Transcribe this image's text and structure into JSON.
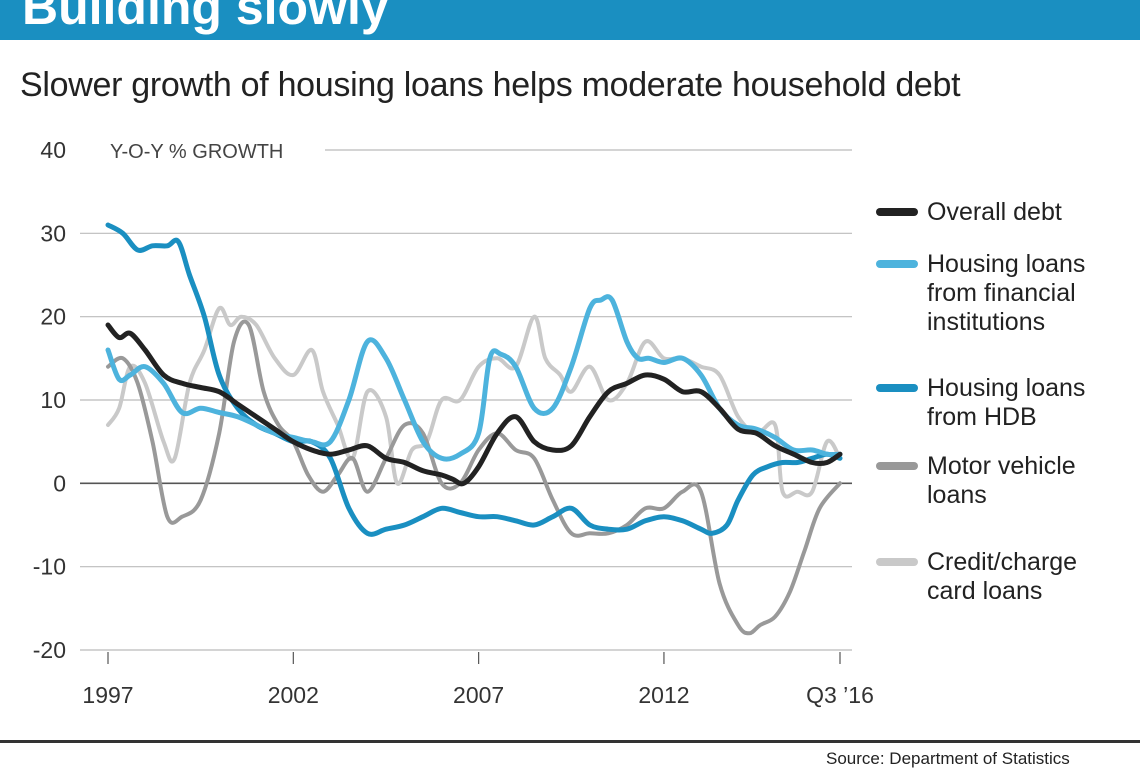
{
  "header": {
    "title": "Building slowly"
  },
  "subtitle": "Slower growth of housing loans helps moderate household debt",
  "source": "Source: Department of Statistics",
  "colors": {
    "overall": "#222222",
    "housing_fi": "#4db3dd",
    "housing_hdb": "#1a8fc1",
    "motor": "#999999",
    "credit": "#c9c9c9",
    "grid": "#bbbbbb",
    "zero": "#555555"
  },
  "chart_data": {
    "type": "line",
    "title": "Slower growth of housing loans helps moderate household debt",
    "ylabel": "Y-O-Y % GROWTH",
    "xlabel": "",
    "ylim": [
      -20,
      40
    ],
    "xlim": [
      1997,
      2016.75
    ],
    "yticks": [
      {
        "v": 40,
        "label": "40"
      },
      {
        "v": 30,
        "label": "30"
      },
      {
        "v": 20,
        "label": "20"
      },
      {
        "v": 10,
        "label": "10"
      },
      {
        "v": 0,
        "label": "0"
      },
      {
        "v": -10,
        "label": "-10"
      },
      {
        "v": -20,
        "label": "-20"
      }
    ],
    "xticks": [
      {
        "v": 1997,
        "label": "1997"
      },
      {
        "v": 2002,
        "label": "2002"
      },
      {
        "v": 2007,
        "label": "2007"
      },
      {
        "v": 2012,
        "label": "2012"
      },
      {
        "v": 2016.75,
        "label": "Q3 ’16"
      }
    ],
    "series": [
      {
        "key": "credit",
        "name": "Credit/charge card loans",
        "legend_lines": [
          "Credit/charge",
          "card loans"
        ],
        "x": [
          1997,
          1997.3,
          1997.6,
          1998,
          1998.5,
          1998.8,
          1999.2,
          1999.6,
          2000,
          2000.3,
          2000.6,
          2001,
          2001.5,
          2002,
          2002.5,
          2002.8,
          2003.2,
          2003.6,
          2004,
          2004.5,
          2004.8,
          2005.2,
          2005.6,
          2006,
          2006.5,
          2007,
          2007.5,
          2008,
          2008.5,
          2008.8,
          2009.2,
          2009.5,
          2010,
          2010.5,
          2011,
          2011.5,
          2012,
          2012.5,
          2013,
          2013.5,
          2014,
          2014.5,
          2015,
          2015.2,
          2015.6,
          2016,
          2016.4,
          2016.75
        ],
        "y": [
          7,
          9,
          14,
          12,
          5,
          3,
          12,
          16,
          21,
          19,
          20,
          19,
          15,
          13,
          16,
          11,
          7,
          3,
          11,
          8,
          0,
          4,
          5,
          10,
          10,
          14,
          15,
          14,
          20,
          15,
          13,
          11,
          14,
          10,
          12,
          17,
          15,
          15,
          14,
          13,
          8,
          6,
          7,
          -1,
          -1,
          -1,
          5,
          3
        ]
      },
      {
        "key": "motor",
        "name": "Motor vehicle loans",
        "legend_lines": [
          "Motor vehicle",
          "loans"
        ],
        "x": [
          1997,
          1997.4,
          1997.8,
          1998.2,
          1998.6,
          1999,
          1999.5,
          2000,
          2000.4,
          2000.8,
          2001.2,
          2001.6,
          2002,
          2002.4,
          2002.8,
          2003.2,
          2003.6,
          2004,
          2004.5,
          2005,
          2005.5,
          2006,
          2006.5,
          2007,
          2007.5,
          2008,
          2008.5,
          2009,
          2009.5,
          2010,
          2010.5,
          2011,
          2011.5,
          2012,
          2012.5,
          2013,
          2013.5,
          2014,
          2014.3,
          2014.6,
          2015,
          2015.4,
          2015.8,
          2016.2,
          2016.75
        ],
        "y": [
          14,
          15,
          12,
          5,
          -4,
          -4,
          -2,
          6,
          17,
          19,
          11,
          7,
          5,
          1,
          -1,
          1,
          3,
          -1,
          3,
          7,
          6,
          0,
          0,
          4,
          6,
          4,
          3,
          -2,
          -6,
          -6,
          -6,
          -5,
          -3,
          -3,
          -1,
          -1,
          -12,
          -17,
          -18,
          -17,
          -16,
          -13,
          -8,
          -3,
          0
        ]
      },
      {
        "key": "housing_hdb",
        "name": "Housing loans from HDB",
        "legend_lines": [
          "Housing loans",
          "from HDB"
        ],
        "x": [
          1997,
          1997.4,
          1997.8,
          1998.2,
          1998.6,
          1998.9,
          1999.2,
          1999.6,
          2000,
          2000.5,
          2001,
          2001.5,
          2002,
          2002.5,
          2003,
          2003.5,
          2004,
          2004.5,
          2005,
          2005.5,
          2006,
          2006.5,
          2007,
          2007.5,
          2008,
          2008.5,
          2009,
          2009.5,
          2010,
          2010.5,
          2011,
          2011.5,
          2012,
          2012.5,
          2013,
          2013.3,
          2013.7,
          2014,
          2014.4,
          2014.8,
          2015.2,
          2015.6,
          2016,
          2016.4,
          2016.75
        ],
        "y": [
          31,
          30,
          28,
          28.5,
          28.5,
          29,
          25,
          20,
          13,
          9,
          7,
          6,
          5,
          5,
          3,
          -3,
          -6,
          -5.5,
          -5,
          -4,
          -3,
          -3.5,
          -4,
          -4,
          -4.5,
          -5,
          -4,
          -3,
          -5,
          -5.5,
          -5.5,
          -4.5,
          -4,
          -4.5,
          -5.5,
          -6,
          -5,
          -2,
          1,
          2,
          2.5,
          2.5,
          3,
          3.5,
          3
        ]
      },
      {
        "key": "housing_fi",
        "name": "Housing loans from financial institutions",
        "legend_lines": [
          "Housing loans",
          "from financial",
          "institutions"
        ],
        "x": [
          1997,
          1997.3,
          1997.6,
          1998,
          1998.5,
          1999,
          1999.5,
          2000,
          2000.5,
          2001,
          2001.5,
          2002,
          2002.5,
          2003,
          2003.5,
          2004,
          2004.5,
          2005,
          2005.5,
          2006,
          2006.5,
          2007,
          2007.3,
          2007.6,
          2008,
          2008.5,
          2009,
          2009.5,
          2010,
          2010.3,
          2010.6,
          2011,
          2011.3,
          2011.6,
          2012,
          2012.5,
          2013,
          2013.5,
          2014,
          2014.5,
          2015,
          2015.5,
          2016,
          2016.4,
          2016.75
        ],
        "y": [
          16,
          12.5,
          13,
          14,
          12,
          8.5,
          9,
          8.5,
          8,
          7,
          6,
          5.5,
          5,
          5,
          10,
          17,
          15,
          10,
          5,
          3,
          3.5,
          6,
          15,
          15.5,
          14,
          9,
          9,
          14,
          21,
          22,
          22,
          17,
          15,
          15,
          14.5,
          15,
          13,
          9,
          7,
          6.5,
          5.5,
          4,
          4,
          3.5,
          3.5
        ]
      },
      {
        "key": "overall",
        "name": "Overall debt",
        "legend_lines": [
          "Overall debt"
        ],
        "x": [
          1997,
          1997.3,
          1997.6,
          1998,
          1998.5,
          1999,
          1999.5,
          2000,
          2000.5,
          2001,
          2001.5,
          2002,
          2002.5,
          2003,
          2003.5,
          2004,
          2004.5,
          2005,
          2005.5,
          2006,
          2006.3,
          2006.6,
          2007,
          2007.5,
          2008,
          2008.5,
          2009,
          2009.5,
          2010,
          2010.5,
          2011,
          2011.5,
          2012,
          2012.5,
          2013,
          2013.5,
          2014,
          2014.5,
          2015,
          2015.5,
          2016,
          2016.4,
          2016.75
        ],
        "y": [
          19,
          17.5,
          18,
          16,
          13,
          12,
          11.5,
          11,
          9.5,
          8,
          6.5,
          5,
          4,
          3.5,
          4,
          4.5,
          3,
          2.5,
          1.5,
          1,
          0.5,
          0,
          2,
          6,
          8,
          5,
          4,
          4.5,
          8,
          11,
          12,
          13,
          12.5,
          11,
          11,
          9,
          6.5,
          6,
          4.5,
          3.5,
          2.5,
          2.5,
          3.5
        ]
      }
    ]
  }
}
